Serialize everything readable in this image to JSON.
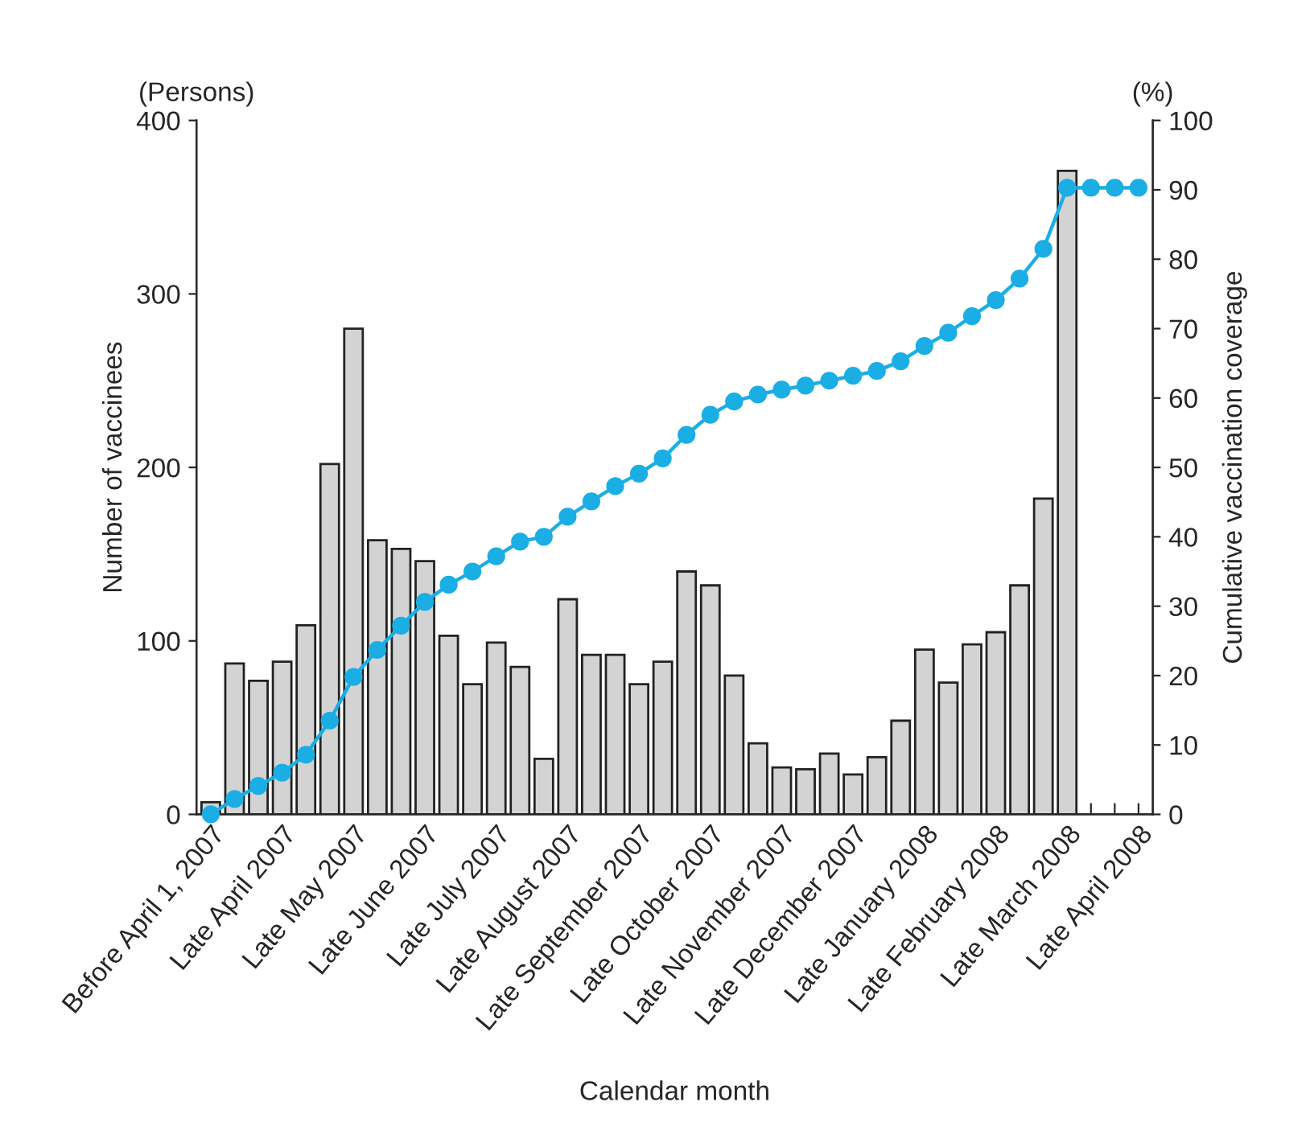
{
  "chart_data": {
    "type": "bar",
    "xlabel": "Calendar month",
    "ylabel": "Number of vaccinees",
    "y2label": "Cumulative vaccination coverage",
    "categories": [
      "Before April 1, 2007",
      null,
      null,
      "Late April 2007",
      null,
      null,
      "Late May 2007",
      null,
      null,
      "Late June 2007",
      null,
      null,
      "Late July 2007",
      null,
      null,
      "Late August 2007",
      null,
      null,
      "Late September 2007",
      null,
      null,
      "Late October 2007",
      null,
      null,
      "Late November 2007",
      null,
      null,
      "Late December 2007",
      null,
      null,
      "Late January 2008",
      null,
      null,
      "Late February 2008",
      null,
      null,
      "Late March 2008",
      null,
      null,
      "Late April 2008"
    ],
    "series": [
      {
        "color": "#d3d3d3",
        "values": [
          7,
          87,
          77,
          88,
          109,
          202,
          280,
          158,
          153,
          146,
          103,
          75,
          99,
          85,
          32,
          124,
          92,
          92,
          75,
          88,
          140,
          132,
          80,
          41,
          27,
          26,
          35,
          23,
          33,
          54,
          95,
          76,
          98,
          105,
          132,
          182,
          371,
          null,
          null,
          null
        ]
      },
      {
        "type": "line",
        "axis": "y2",
        "color": "#1aaee5",
        "marker": "circle",
        "line_style": "solid",
        "values": [
          0,
          2.2,
          4.1,
          6.0,
          8.6,
          13.5,
          19.8,
          23.7,
          27.2,
          30.6,
          33.1,
          35.0,
          37.2,
          39.3,
          40.0,
          42.9,
          45.1,
          47.3,
          49.1,
          51.3,
          54.7,
          57.6,
          59.5,
          60.5,
          61.2,
          61.8,
          62.5,
          63.2,
          63.9,
          65.3,
          67.5,
          69.4,
          71.8,
          74.1,
          77.2,
          81.5,
          90.3,
          90.3,
          90.3,
          90.3
        ]
      }
    ],
    "ylim": [
      0,
      400
    ],
    "yticks": [
      0,
      100,
      200,
      300,
      400
    ],
    "y2lim": [
      0,
      100
    ],
    "y2ticks": [
      0,
      10,
      20,
      30,
      40,
      50,
      60,
      70,
      80,
      90,
      100
    ],
    "annotations": [
      "(Persons)",
      "(%)"
    ],
    "grid": false,
    "legend": false
  }
}
